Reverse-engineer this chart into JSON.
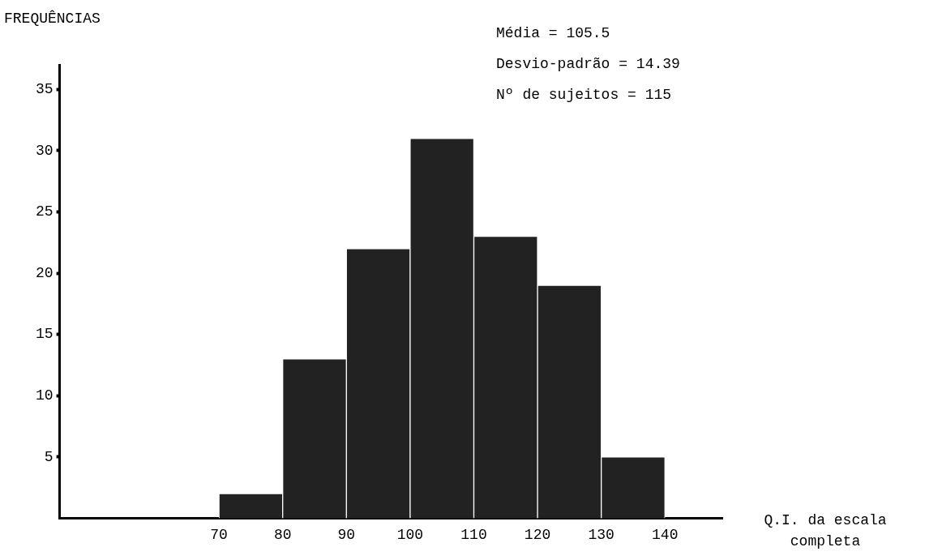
{
  "chart_data": {
    "type": "histogram",
    "ylabel": "FREQUÊNCIAS",
    "xlabel": "Q.I. da escala completa",
    "annotations": [
      "Média = 105.5",
      "Desvio-padrão = 14.39",
      "Nº de sujeitos = 115"
    ],
    "bins": [
      70,
      80,
      90,
      100,
      110,
      120,
      130,
      140
    ],
    "values": [
      2,
      13,
      22,
      31,
      23,
      19,
      5
    ],
    "color": "#222222",
    "xlim": [
      45,
      149
    ],
    "xticks": [
      70,
      80,
      90,
      100,
      110,
      120,
      130,
      140
    ],
    "ylim": [
      0,
      37
    ],
    "yticks": [
      5,
      10,
      15,
      20,
      25,
      30,
      35
    ],
    "grid": false,
    "legend": false
  }
}
